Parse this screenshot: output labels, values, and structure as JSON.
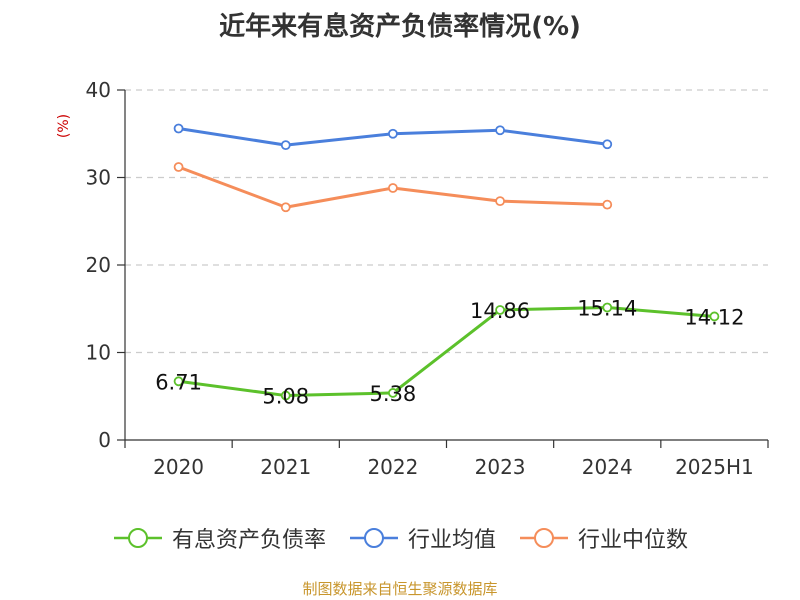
{
  "chart_data": {
    "type": "line",
    "title": "近年来有息资产负债率情况(%)",
    "ylabel": "(%)",
    "xlabel": "",
    "categories": [
      "2020",
      "2021",
      "2022",
      "2023",
      "2024",
      "2025H1"
    ],
    "ylim": [
      0,
      40
    ],
    "yticks": [
      0,
      10,
      20,
      30,
      40
    ],
    "grid": true,
    "legend_position": "bottom",
    "series": [
      {
        "name": "有息资产负债率",
        "color": "#5cc12b",
        "values": [
          6.71,
          5.08,
          5.38,
          14.86,
          15.14,
          14.12
        ],
        "data_labels": [
          "6.71",
          "5.08",
          "5.38",
          "14.86",
          "15.14",
          "14.12"
        ]
      },
      {
        "name": "行业均值",
        "color": "#4a7fdc",
        "values": [
          35.6,
          33.7,
          35.0,
          35.4,
          33.8,
          null
        ]
      },
      {
        "name": "行业中位数",
        "color": "#f58d5a",
        "values": [
          31.2,
          26.6,
          28.8,
          27.3,
          26.9,
          null
        ]
      }
    ]
  },
  "source_text": "制图数据来自恒生聚源数据库",
  "colors": {
    "source": "#c8962d",
    "ylabel": "#cc0000",
    "axis": "#333333",
    "grid": "#cccccc"
  }
}
